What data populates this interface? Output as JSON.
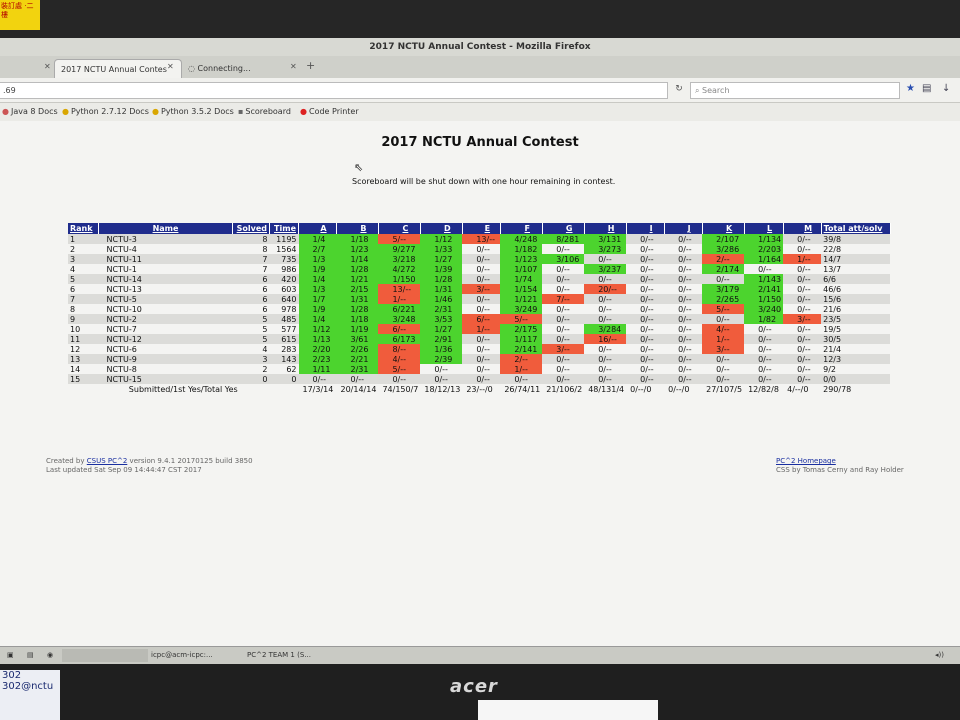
{
  "sticker_text": "裝訂處 ·二樓",
  "window": {
    "title": "2017 NCTU Annual Contest - Mozilla Firefox",
    "tabs": [
      {
        "label": "2017 NCTU Annual Contes"
      },
      {
        "label": "Connecting..."
      }
    ],
    "url": ".69",
    "search_placeholder": "Search"
  },
  "bookmarks": [
    {
      "label": "Java 8 Docs",
      "icon": "java-icon"
    },
    {
      "label": "Python 2.7.12 Docs",
      "icon": "python-icon"
    },
    {
      "label": "Python 3.5.2 Docs",
      "icon": "python-icon"
    },
    {
      "label": "Scoreboard",
      "icon": "page-icon"
    },
    {
      "label": "Code Printer",
      "icon": "printer-icon"
    }
  ],
  "page": {
    "title": "2017 NCTU Annual Contest",
    "notice": "Scoreboard will be shut down with one hour remaining in contest."
  },
  "colors": {
    "solved": "#4cd42e",
    "attempted": "#f05c3c",
    "header": "#1f2c8c"
  },
  "scoreboard": {
    "headers": {
      "rank": "Rank",
      "name": "Name",
      "solved": "Solved",
      "time": "Time",
      "total": "Total att/solv"
    },
    "problems": [
      "A",
      "B",
      "C",
      "D",
      "E",
      "F",
      "G",
      "H",
      "I",
      "J",
      "K",
      "L",
      "M"
    ],
    "rows": [
      {
        "rank": "1",
        "name": "NCTU-3",
        "solved": "8",
        "time": "1195",
        "total": "39/8",
        "cells": [
          [
            "1/4",
            "g"
          ],
          [
            "1/18",
            "g"
          ],
          [
            "5/--",
            "r"
          ],
          [
            "1/12",
            "g"
          ],
          [
            "13/--",
            "r"
          ],
          [
            "4/248",
            "g"
          ],
          [
            "8/281",
            "g"
          ],
          [
            "3/131",
            "g"
          ],
          [
            "0/--",
            ""
          ],
          [
            "0/--",
            ""
          ],
          [
            "2/107",
            "g"
          ],
          [
            "1/134",
            "g"
          ],
          [
            "0/--",
            ""
          ]
        ]
      },
      {
        "rank": "2",
        "name": "NCTU-4",
        "solved": "8",
        "time": "1564",
        "total": "22/8",
        "cells": [
          [
            "2/7",
            "g"
          ],
          [
            "1/23",
            "g"
          ],
          [
            "9/277",
            "g"
          ],
          [
            "1/33",
            "g"
          ],
          [
            "0/--",
            ""
          ],
          [
            "1/182",
            "g"
          ],
          [
            "0/--",
            ""
          ],
          [
            "3/273",
            "g"
          ],
          [
            "0/--",
            ""
          ],
          [
            "0/--",
            ""
          ],
          [
            "3/286",
            "g"
          ],
          [
            "2/203",
            "g"
          ],
          [
            "0/--",
            ""
          ]
        ]
      },
      {
        "rank": "3",
        "name": "NCTU-11",
        "solved": "7",
        "time": "735",
        "total": "14/7",
        "cells": [
          [
            "1/3",
            "g"
          ],
          [
            "1/14",
            "g"
          ],
          [
            "3/218",
            "g"
          ],
          [
            "1/27",
            "g"
          ],
          [
            "0/--",
            ""
          ],
          [
            "1/123",
            "g"
          ],
          [
            "3/106",
            "g"
          ],
          [
            "0/--",
            ""
          ],
          [
            "0/--",
            ""
          ],
          [
            "0/--",
            ""
          ],
          [
            "2/--",
            "r"
          ],
          [
            "1/164",
            "g"
          ],
          [
            "1/--",
            "r"
          ]
        ]
      },
      {
        "rank": "4",
        "name": "NCTU-1",
        "solved": "7",
        "time": "986",
        "total": "13/7",
        "cells": [
          [
            "1/9",
            "g"
          ],
          [
            "1/28",
            "g"
          ],
          [
            "4/272",
            "g"
          ],
          [
            "1/39",
            "g"
          ],
          [
            "0/--",
            ""
          ],
          [
            "1/107",
            "g"
          ],
          [
            "0/--",
            ""
          ],
          [
            "3/237",
            "g"
          ],
          [
            "0/--",
            ""
          ],
          [
            "0/--",
            ""
          ],
          [
            "2/174",
            "g"
          ],
          [
            "0/--",
            ""
          ],
          [
            "0/--",
            ""
          ]
        ]
      },
      {
        "rank": "5",
        "name": "NCTU-14",
        "solved": "6",
        "time": "420",
        "total": "6/6",
        "cells": [
          [
            "1/4",
            "g"
          ],
          [
            "1/21",
            "g"
          ],
          [
            "1/150",
            "g"
          ],
          [
            "1/28",
            "g"
          ],
          [
            "0/--",
            ""
          ],
          [
            "1/74",
            "g"
          ],
          [
            "0/--",
            ""
          ],
          [
            "0/--",
            ""
          ],
          [
            "0/--",
            ""
          ],
          [
            "0/--",
            ""
          ],
          [
            "0/--",
            ""
          ],
          [
            "1/143",
            "g"
          ],
          [
            "0/--",
            ""
          ]
        ]
      },
      {
        "rank": "6",
        "name": "NCTU-13",
        "solved": "6",
        "time": "603",
        "total": "46/6",
        "cells": [
          [
            "1/3",
            "g"
          ],
          [
            "2/15",
            "g"
          ],
          [
            "13/--",
            "r"
          ],
          [
            "1/31",
            "g"
          ],
          [
            "3/--",
            "r"
          ],
          [
            "1/154",
            "g"
          ],
          [
            "0/--",
            ""
          ],
          [
            "20/--",
            "r"
          ],
          [
            "0/--",
            ""
          ],
          [
            "0/--",
            ""
          ],
          [
            "3/179",
            "g"
          ],
          [
            "2/141",
            "g"
          ],
          [
            "0/--",
            ""
          ]
        ]
      },
      {
        "rank": "7",
        "name": "NCTU-5",
        "solved": "6",
        "time": "640",
        "total": "15/6",
        "cells": [
          [
            "1/7",
            "g"
          ],
          [
            "1/31",
            "g"
          ],
          [
            "1/--",
            "r"
          ],
          [
            "1/46",
            "g"
          ],
          [
            "0/--",
            ""
          ],
          [
            "1/121",
            "g"
          ],
          [
            "7/--",
            "r"
          ],
          [
            "0/--",
            ""
          ],
          [
            "0/--",
            ""
          ],
          [
            "0/--",
            ""
          ],
          [
            "2/265",
            "g"
          ],
          [
            "1/150",
            "g"
          ],
          [
            "0/--",
            ""
          ]
        ]
      },
      {
        "rank": "8",
        "name": "NCTU-10",
        "solved": "6",
        "time": "978",
        "total": "21/6",
        "cells": [
          [
            "1/9",
            "g"
          ],
          [
            "1/28",
            "g"
          ],
          [
            "6/221",
            "g"
          ],
          [
            "2/31",
            "g"
          ],
          [
            "0/--",
            ""
          ],
          [
            "3/249",
            "g"
          ],
          [
            "0/--",
            ""
          ],
          [
            "0/--",
            ""
          ],
          [
            "0/--",
            ""
          ],
          [
            "0/--",
            ""
          ],
          [
            "5/--",
            "r"
          ],
          [
            "3/240",
            "g"
          ],
          [
            "0/--",
            ""
          ]
        ]
      },
      {
        "rank": "9",
        "name": "NCTU-2",
        "solved": "5",
        "time": "485",
        "total": "23/5",
        "cells": [
          [
            "1/4",
            "g"
          ],
          [
            "1/18",
            "g"
          ],
          [
            "3/248",
            "g"
          ],
          [
            "3/53",
            "g"
          ],
          [
            "6/--",
            "r"
          ],
          [
            "5/--",
            "r"
          ],
          [
            "0/--",
            ""
          ],
          [
            "0/--",
            ""
          ],
          [
            "0/--",
            ""
          ],
          [
            "0/--",
            ""
          ],
          [
            "0/--",
            ""
          ],
          [
            "1/82",
            "g"
          ],
          [
            "3/--",
            "r"
          ]
        ]
      },
      {
        "rank": "10",
        "name": "NCTU-7",
        "solved": "5",
        "time": "577",
        "total": "19/5",
        "cells": [
          [
            "1/12",
            "g"
          ],
          [
            "1/19",
            "g"
          ],
          [
            "6/--",
            "r"
          ],
          [
            "1/27",
            "g"
          ],
          [
            "1/--",
            "r"
          ],
          [
            "2/175",
            "g"
          ],
          [
            "0/--",
            ""
          ],
          [
            "3/284",
            "g"
          ],
          [
            "0/--",
            ""
          ],
          [
            "0/--",
            ""
          ],
          [
            "4/--",
            "r"
          ],
          [
            "0/--",
            ""
          ],
          [
            "0/--",
            ""
          ]
        ]
      },
      {
        "rank": "11",
        "name": "NCTU-12",
        "solved": "5",
        "time": "615",
        "total": "30/5",
        "cells": [
          [
            "1/13",
            "g"
          ],
          [
            "3/61",
            "g"
          ],
          [
            "6/173",
            "g"
          ],
          [
            "2/91",
            "g"
          ],
          [
            "0/--",
            ""
          ],
          [
            "1/117",
            "g"
          ],
          [
            "0/--",
            ""
          ],
          [
            "16/--",
            "r"
          ],
          [
            "0/--",
            ""
          ],
          [
            "0/--",
            ""
          ],
          [
            "1/--",
            "r"
          ],
          [
            "0/--",
            ""
          ],
          [
            "0/--",
            ""
          ]
        ]
      },
      {
        "rank": "12",
        "name": "NCTU-6",
        "solved": "4",
        "time": "283",
        "total": "21/4",
        "cells": [
          [
            "2/20",
            "g"
          ],
          [
            "2/26",
            "g"
          ],
          [
            "8/--",
            "r"
          ],
          [
            "1/36",
            "g"
          ],
          [
            "0/--",
            ""
          ],
          [
            "2/141",
            "g"
          ],
          [
            "3/--",
            "r"
          ],
          [
            "0/--",
            ""
          ],
          [
            "0/--",
            ""
          ],
          [
            "0/--",
            ""
          ],
          [
            "3/--",
            "r"
          ],
          [
            "0/--",
            ""
          ],
          [
            "0/--",
            ""
          ]
        ]
      },
      {
        "rank": "13",
        "name": "NCTU-9",
        "solved": "3",
        "time": "143",
        "total": "12/3",
        "cells": [
          [
            "2/23",
            "g"
          ],
          [
            "2/21",
            "g"
          ],
          [
            "4/--",
            "r"
          ],
          [
            "2/39",
            "g"
          ],
          [
            "0/--",
            ""
          ],
          [
            "2/--",
            "r"
          ],
          [
            "0/--",
            ""
          ],
          [
            "0/--",
            ""
          ],
          [
            "0/--",
            ""
          ],
          [
            "0/--",
            ""
          ],
          [
            "0/--",
            ""
          ],
          [
            "0/--",
            ""
          ],
          [
            "0/--",
            ""
          ]
        ]
      },
      {
        "rank": "14",
        "name": "NCTU-8",
        "solved": "2",
        "time": "62",
        "total": "9/2",
        "cells": [
          [
            "1/11",
            "g"
          ],
          [
            "2/31",
            "g"
          ],
          [
            "5/--",
            "r"
          ],
          [
            "0/--",
            ""
          ],
          [
            "0/--",
            ""
          ],
          [
            "1/--",
            "r"
          ],
          [
            "0/--",
            ""
          ],
          [
            "0/--",
            ""
          ],
          [
            "0/--",
            ""
          ],
          [
            "0/--",
            ""
          ],
          [
            "0/--",
            ""
          ],
          [
            "0/--",
            ""
          ],
          [
            "0/--",
            ""
          ]
        ]
      },
      {
        "rank": "15",
        "name": "NCTU-15",
        "solved": "0",
        "time": "0",
        "total": "0/0",
        "cells": [
          [
            "0/--",
            ""
          ],
          [
            "0/--",
            ""
          ],
          [
            "0/--",
            ""
          ],
          [
            "0/--",
            ""
          ],
          [
            "0/--",
            ""
          ],
          [
            "0/--",
            ""
          ],
          [
            "0/--",
            ""
          ],
          [
            "0/--",
            ""
          ],
          [
            "0/--",
            ""
          ],
          [
            "0/--",
            ""
          ],
          [
            "0/--",
            ""
          ],
          [
            "0/--",
            ""
          ],
          [
            "0/--",
            ""
          ]
        ]
      }
    ],
    "footer": {
      "label": "Submitted/1st Yes/Total Yes",
      "cells": [
        "17/3/14",
        "20/14/14",
        "74/150/7",
        "18/12/13",
        "23/--/0",
        "26/74/11",
        "21/106/2",
        "48/131/4",
        "0/--/0",
        "0/--/0",
        "27/107/5",
        "12/82/8",
        "4/--/0"
      ],
      "total": "290/78"
    }
  },
  "credits": {
    "created_prefix": "Created by",
    "created_link": "CSUS PC^2",
    "created_suffix": "version 9.4.1 20170125 build 3850",
    "updated": "Last updated Sat Sep 09 14:44:47 CST 2017",
    "homepage": "PC^2 Homepage",
    "css_by": "CSS by Tomas Cerny and Ray Holder"
  },
  "taskbar": [
    {
      "label": "icpc@acm-icpc:..."
    },
    {
      "label": "PC^2 TEAM 1 (S..."
    }
  ],
  "monitor_brand": "acer",
  "desk_note": [
    "302",
    "302@nctu"
  ]
}
